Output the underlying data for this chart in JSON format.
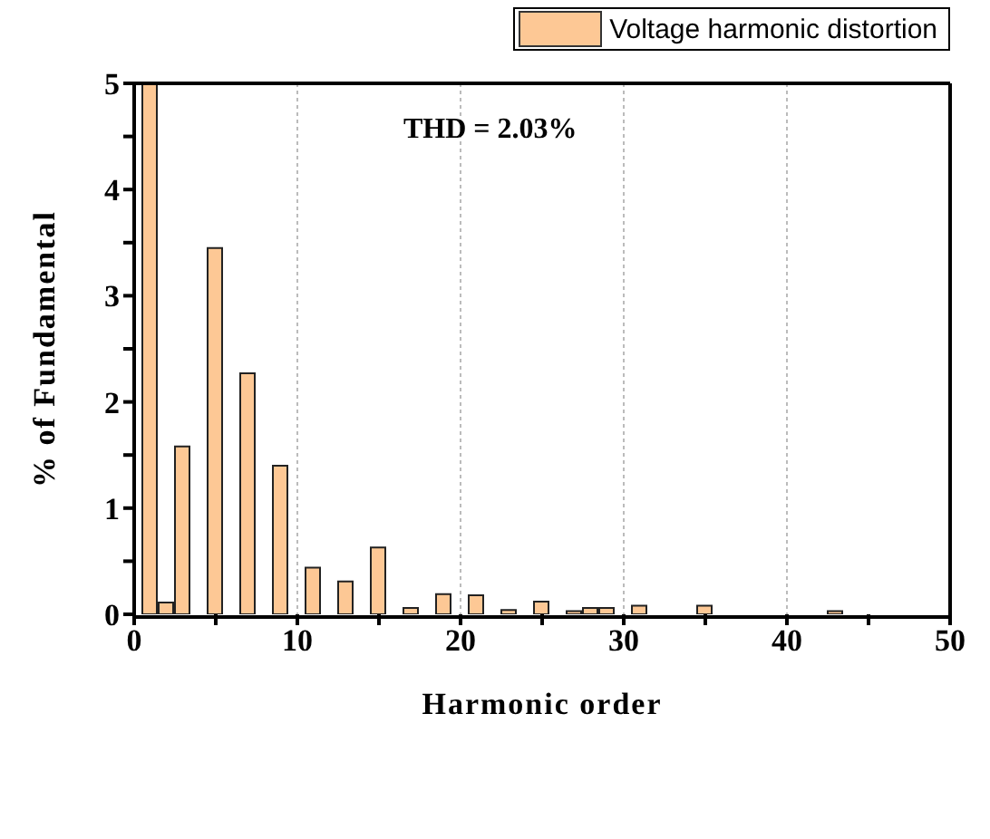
{
  "chart_data": {
    "type": "bar",
    "xlabel": "Harmonic order",
    "ylabel": "% of Fundamental",
    "annotations": [
      "THD = 2.03%"
    ],
    "x": [
      1,
      2,
      3,
      5,
      7,
      9,
      11,
      13,
      15,
      17,
      19,
      21,
      23,
      25,
      27,
      28,
      29,
      31,
      35,
      43
    ],
    "series": [
      {
        "name": "Voltage harmonic distortion",
        "color": "#fdc895",
        "values": [
          5,
          0.11,
          1.58,
          3.45,
          2.27,
          1.4,
          0.44,
          0.31,
          0.63,
          0.06,
          0.19,
          0.18,
          0.04,
          0.12,
          0.03,
          0.06,
          0.06,
          0.08,
          0.08,
          0.03
        ]
      }
    ],
    "xlim": [
      0,
      50
    ],
    "xticks": [
      0,
      {
        "value": 5,
        "label": null
      },
      10,
      {
        "value": 15,
        "label": null
      },
      20,
      {
        "value": 25,
        "label": null
      },
      30,
      {
        "value": 35,
        "label": null
      },
      40,
      {
        "value": 45,
        "label": null
      },
      50
    ],
    "ylim": [
      0,
      5
    ],
    "yticks": [
      0,
      {
        "value": 0.5,
        "label": null
      },
      1,
      {
        "value": 1.5,
        "label": null
      },
      2,
      {
        "value": 2.5,
        "label": null
      },
      3,
      {
        "value": 3.5,
        "label": null
      },
      4,
      {
        "value": 4.5,
        "label": null
      },
      5
    ],
    "grid": "x",
    "legend": "top"
  }
}
